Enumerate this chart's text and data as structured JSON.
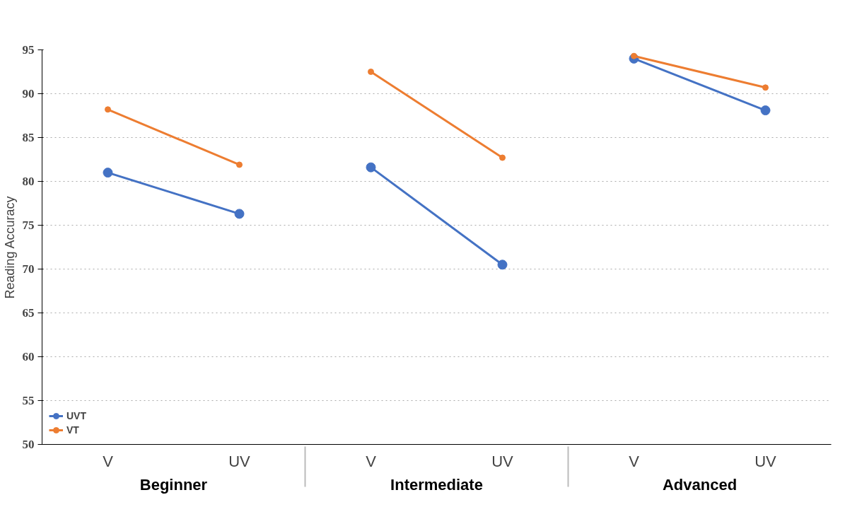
{
  "chart_data": {
    "type": "line",
    "ylabel": "Reading Accuracy",
    "categories": [
      "V",
      "UV",
      "V",
      "UV",
      "V",
      "UV"
    ],
    "annotations": [
      "Beginner",
      "Intermediate",
      "Advanced"
    ],
    "series": [
      {
        "name": "UVT",
        "color": "#4472c4",
        "values": [
          81.0,
          76.3,
          null,
          null,
          null,
          null
        ]
      },
      {
        "name": "VT",
        "color": "#ed7d31",
        "values": [
          88.2,
          81.9,
          null,
          null,
          null,
          null
        ]
      },
      {
        "color": "#4472c4",
        "values": [
          null,
          null,
          81.6,
          70.5,
          null,
          null
        ]
      },
      {
        "color": "#ed7d31",
        "values": [
          null,
          null,
          92.5,
          82.7,
          null,
          null
        ]
      },
      {
        "color": "#4472c4",
        "values": [
          null,
          null,
          null,
          null,
          94.0,
          88.1
        ]
      },
      {
        "color": "#ed7d31",
        "values": [
          null,
          null,
          null,
          null,
          94.3,
          90.7
        ]
      }
    ],
    "ylim": [
      50,
      95
    ],
    "yticks": [
      50,
      55,
      60,
      65,
      70,
      75,
      80,
      85,
      90,
      95
    ],
    "grid": "y",
    "marker": "circle",
    "line_style": "solid",
    "legend": "bottom left"
  }
}
